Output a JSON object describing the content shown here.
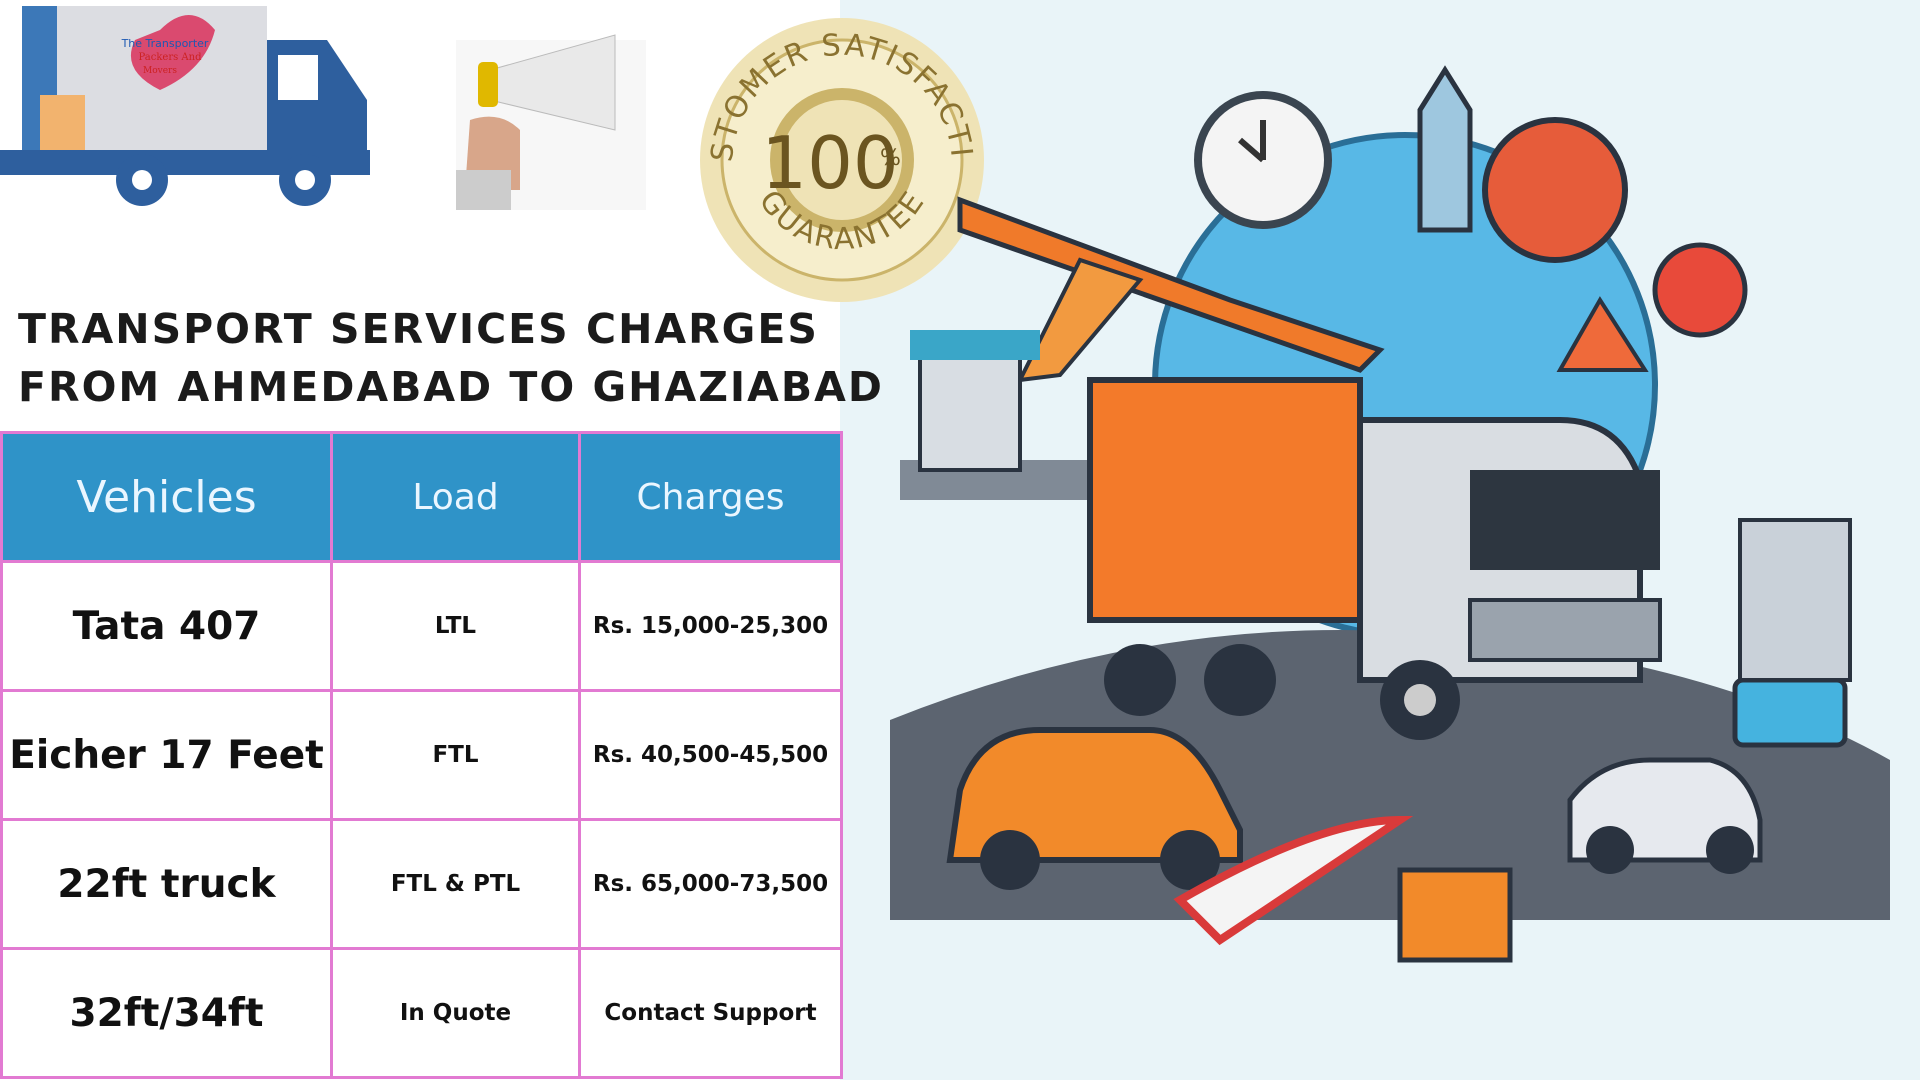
{
  "logo": {
    "lines": [
      "The Transporter",
      "Packers And",
      "Movers"
    ]
  },
  "badge": {
    "top": "CUSTOMER SATISFACTION",
    "number": "100",
    "unit": "%",
    "bottom": "GUARANTEE"
  },
  "title": [
    "TRANSPORT SERVICES CHARGES",
    "FROM AHMEDABAD TO GHAZIABAD"
  ],
  "table": {
    "header": [
      "Vehicles",
      "Load",
      "Charges"
    ],
    "rows": [
      [
        "Tata 407",
        "LTL",
        "Rs. 15,000-25,300"
      ],
      [
        "Eicher 17 Feet",
        "FTL",
        "Rs. 40,500-45,500"
      ],
      [
        "22ft truck",
        "FTL & PTL",
        "Rs. 65,000-73,500"
      ],
      [
        "32ft/34ft",
        "In Quote",
        "Contact Support"
      ]
    ]
  }
}
